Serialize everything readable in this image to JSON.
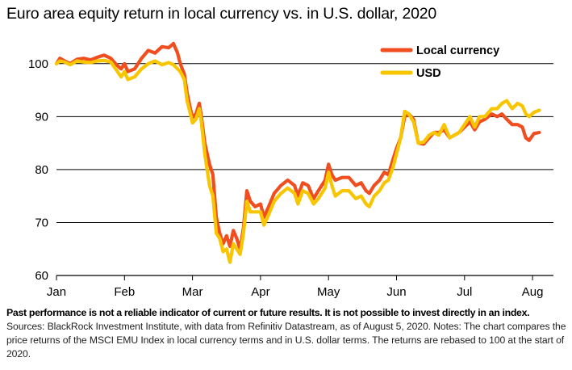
{
  "title": "Euro area equity return in local currency vs. in U.S. dollar, 2020",
  "chart_data": {
    "type": "line",
    "title": "Euro area equity return in local currency vs. in U.S. dollar, 2020",
    "xlabel": "",
    "ylabel": "",
    "x_range": [
      0,
      7.15
    ],
    "ylim": [
      60,
      105
    ],
    "yticks": [
      60,
      70,
      80,
      90,
      100
    ],
    "x_tick_labels": [
      {
        "pos": 0,
        "label": "Jan"
      },
      {
        "pos": 1,
        "label": "Feb"
      },
      {
        "pos": 2,
        "label": "Mar"
      },
      {
        "pos": 3,
        "label": "Apr"
      },
      {
        "pos": 4,
        "label": "May"
      },
      {
        "pos": 5,
        "label": "Jun"
      },
      {
        "pos": 6,
        "label": "Jul"
      },
      {
        "pos": 7,
        "label": "Aug"
      }
    ],
    "grid": "horizontal",
    "legend_position": "top-right",
    "x_unit": "months since Jan 1",
    "series": [
      {
        "name": "Local currency",
        "color": "#f04e1f",
        "points": [
          [
            0,
            100
          ],
          [
            0.05,
            101
          ],
          [
            0.12,
            100.5
          ],
          [
            0.2,
            100
          ],
          [
            0.3,
            100.8
          ],
          [
            0.4,
            101
          ],
          [
            0.5,
            100.7
          ],
          [
            0.6,
            101.2
          ],
          [
            0.7,
            101.6
          ],
          [
            0.8,
            101
          ],
          [
            0.88,
            99.8
          ],
          [
            0.95,
            99
          ],
          [
            1.0,
            100
          ],
          [
            1.05,
            98.5
          ],
          [
            1.15,
            99
          ],
          [
            1.25,
            101
          ],
          [
            1.35,
            102.5
          ],
          [
            1.45,
            102
          ],
          [
            1.55,
            103.2
          ],
          [
            1.65,
            103
          ],
          [
            1.72,
            103.8
          ],
          [
            1.78,
            102
          ],
          [
            1.82,
            100
          ],
          [
            1.88,
            98
          ],
          [
            1.92,
            94.5
          ],
          [
            1.96,
            92
          ],
          [
            2.0,
            89.8
          ],
          [
            2.05,
            90.5
          ],
          [
            2.1,
            92.5
          ],
          [
            2.13,
            90
          ],
          [
            2.18,
            85
          ],
          [
            2.25,
            81
          ],
          [
            2.3,
            79
          ],
          [
            2.35,
            71
          ],
          [
            2.4,
            68
          ],
          [
            2.45,
            66
          ],
          [
            2.5,
            67.5
          ],
          [
            2.55,
            65.5
          ],
          [
            2.6,
            68.5
          ],
          [
            2.65,
            67
          ],
          [
            2.7,
            65
          ],
          [
            2.75,
            69
          ],
          [
            2.8,
            76
          ],
          [
            2.85,
            74
          ],
          [
            2.92,
            73
          ],
          [
            3.0,
            73.5
          ],
          [
            3.05,
            71
          ],
          [
            3.12,
            73
          ],
          [
            3.2,
            75.5
          ],
          [
            3.3,
            77
          ],
          [
            3.4,
            78
          ],
          [
            3.5,
            77
          ],
          [
            3.55,
            75
          ],
          [
            3.62,
            77.5
          ],
          [
            3.7,
            77
          ],
          [
            3.78,
            74.5
          ],
          [
            3.85,
            76
          ],
          [
            3.95,
            78
          ],
          [
            4.0,
            81
          ],
          [
            4.05,
            79
          ],
          [
            4.1,
            78
          ],
          [
            4.2,
            78.5
          ],
          [
            4.3,
            78.5
          ],
          [
            4.4,
            77
          ],
          [
            4.48,
            77.5
          ],
          [
            4.55,
            76
          ],
          [
            4.6,
            75.5
          ],
          [
            4.67,
            77
          ],
          [
            4.75,
            78
          ],
          [
            4.82,
            79.5
          ],
          [
            4.88,
            79
          ],
          [
            4.95,
            82
          ],
          [
            5.0,
            84
          ],
          [
            5.06,
            86
          ],
          [
            5.12,
            90
          ],
          [
            5.18,
            90.5
          ],
          [
            5.25,
            89.5
          ],
          [
            5.32,
            85
          ],
          [
            5.4,
            84.8
          ],
          [
            5.48,
            86
          ],
          [
            5.55,
            87
          ],
          [
            5.62,
            87
          ],
          [
            5.7,
            87.5
          ],
          [
            5.78,
            86
          ],
          [
            5.85,
            86.5
          ],
          [
            5.92,
            87
          ],
          [
            6.0,
            88
          ],
          [
            6.08,
            89
          ],
          [
            6.15,
            87.5
          ],
          [
            6.22,
            89
          ],
          [
            6.3,
            89.5
          ],
          [
            6.4,
            90.5
          ],
          [
            6.48,
            90
          ],
          [
            6.55,
            90.5
          ],
          [
            6.62,
            89.5
          ],
          [
            6.7,
            88.5
          ],
          [
            6.78,
            88.5
          ],
          [
            6.85,
            88
          ],
          [
            6.9,
            86
          ],
          [
            6.95,
            85.5
          ],
          [
            7.02,
            86.8
          ],
          [
            7.1,
            87
          ]
        ]
      },
      {
        "name": "USD",
        "color": "#f7c600",
        "points": [
          [
            0,
            100
          ],
          [
            0.05,
            100.5
          ],
          [
            0.12,
            100.3
          ],
          [
            0.2,
            99.8
          ],
          [
            0.3,
            100.5
          ],
          [
            0.4,
            100.3
          ],
          [
            0.5,
            100.2
          ],
          [
            0.6,
            100.5
          ],
          [
            0.7,
            100.6
          ],
          [
            0.8,
            100.3
          ],
          [
            0.88,
            98.8
          ],
          [
            0.95,
            97.5
          ],
          [
            1.0,
            98.5
          ],
          [
            1.05,
            97
          ],
          [
            1.15,
            97.5
          ],
          [
            1.25,
            99
          ],
          [
            1.35,
            100
          ],
          [
            1.45,
            100.5
          ],
          [
            1.55,
            99.8
          ],
          [
            1.65,
            100.2
          ],
          [
            1.72,
            99.8
          ],
          [
            1.78,
            99
          ],
          [
            1.82,
            98.5
          ],
          [
            1.88,
            97
          ],
          [
            1.92,
            93
          ],
          [
            1.96,
            91
          ],
          [
            2.0,
            88.8
          ],
          [
            2.05,
            89.5
          ],
          [
            2.1,
            91.5
          ],
          [
            2.13,
            89
          ],
          [
            2.18,
            83
          ],
          [
            2.25,
            77
          ],
          [
            2.3,
            75
          ],
          [
            2.35,
            68
          ],
          [
            2.4,
            67
          ],
          [
            2.45,
            64.5
          ],
          [
            2.5,
            65
          ],
          [
            2.55,
            62.5
          ],
          [
            2.6,
            66
          ],
          [
            2.65,
            65
          ],
          [
            2.7,
            64
          ],
          [
            2.75,
            68
          ],
          [
            2.8,
            74
          ],
          [
            2.85,
            72
          ],
          [
            2.92,
            72
          ],
          [
            3.0,
            72
          ],
          [
            3.05,
            69.5
          ],
          [
            3.12,
            71.5
          ],
          [
            3.2,
            74
          ],
          [
            3.3,
            75.5
          ],
          [
            3.4,
            76.5
          ],
          [
            3.5,
            75.5
          ],
          [
            3.55,
            73.5
          ],
          [
            3.62,
            76
          ],
          [
            3.7,
            75.5
          ],
          [
            3.78,
            73.5
          ],
          [
            3.85,
            74.5
          ],
          [
            3.95,
            76.5
          ],
          [
            4.0,
            79.5
          ],
          [
            4.05,
            77
          ],
          [
            4.1,
            75
          ],
          [
            4.2,
            76
          ],
          [
            4.3,
            76
          ],
          [
            4.4,
            74.5
          ],
          [
            4.48,
            75
          ],
          [
            4.55,
            73.5
          ],
          [
            4.6,
            73
          ],
          [
            4.67,
            75
          ],
          [
            4.75,
            76
          ],
          [
            4.82,
            77.5
          ],
          [
            4.88,
            78
          ],
          [
            4.95,
            80.5
          ],
          [
            5.0,
            83
          ],
          [
            5.06,
            86
          ],
          [
            5.12,
            91
          ],
          [
            5.18,
            90.5
          ],
          [
            5.25,
            89
          ],
          [
            5.32,
            85
          ],
          [
            5.4,
            85.2
          ],
          [
            5.48,
            86.5
          ],
          [
            5.55,
            87
          ],
          [
            5.62,
            86.5
          ],
          [
            5.7,
            88.5
          ],
          [
            5.78,
            86
          ],
          [
            5.85,
            86.5
          ],
          [
            5.92,
            87
          ],
          [
            6.0,
            88.5
          ],
          [
            6.08,
            90
          ],
          [
            6.15,
            88
          ],
          [
            6.22,
            90
          ],
          [
            6.3,
            90
          ],
          [
            6.4,
            91.5
          ],
          [
            6.48,
            91.5
          ],
          [
            6.55,
            92.5
          ],
          [
            6.62,
            93
          ],
          [
            6.7,
            91.5
          ],
          [
            6.78,
            92.5
          ],
          [
            6.85,
            92
          ],
          [
            6.9,
            90.5
          ],
          [
            6.95,
            90
          ],
          [
            7.02,
            90.8
          ],
          [
            7.1,
            91.2
          ]
        ]
      }
    ]
  },
  "footer": {
    "disclaimer": "Past performance is not a reliable indicator of current or future results. It is not possible to invest directly in an index.",
    "sources": "Sources: BlackRock Investment Institute, with data from Refinitiv Datastream, as of August 5, 2020. Notes: The chart compares the price returns of the MSCI EMU Index in local currency terms and in U.S. dollar terms. The returns are rebased to 100 at the start of 2020."
  }
}
